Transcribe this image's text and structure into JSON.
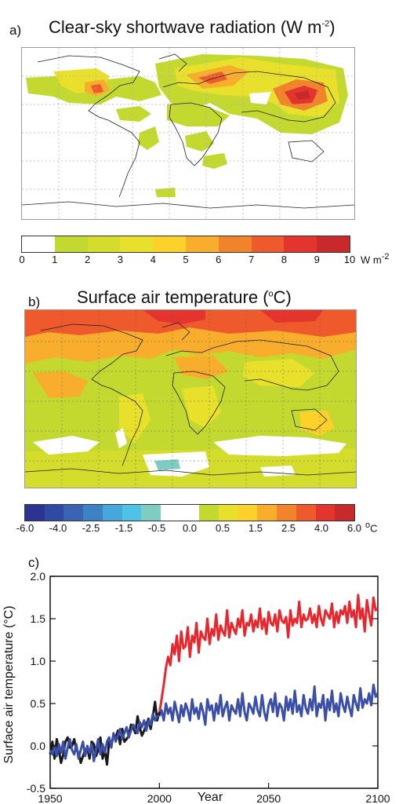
{
  "panel_a": {
    "letter": "a)",
    "title": "Clear-sky shortwave radiation (W m",
    "title_sup": "-2",
    "title_end": ")",
    "colorbar": {
      "ticks": [
        "0",
        "1",
        "2",
        "3",
        "4",
        "5",
        "6",
        "7",
        "8",
        "9",
        "10"
      ],
      "unit": "W m",
      "unit_sup": "-2",
      "colors": [
        "#ffffff",
        "#c3d92f",
        "#d4dc2c",
        "#e9e02b",
        "#fbd12a",
        "#f8ad2c",
        "#f1842a",
        "#ee5a2b",
        "#e3352d",
        "#c82a2b"
      ]
    }
  },
  "panel_b": {
    "letter": "b)",
    "title": "Surface air temperature (",
    "title_sup": "o",
    "title_end": "C)",
    "colorbar": {
      "ticks": [
        "-6.0",
        "-4.0",
        "-2.5",
        "-1.5",
        "-0.5",
        "0.0",
        "0.5",
        "1.5",
        "2.5",
        "4.0",
        "6.0"
      ],
      "unit_sup": "o",
      "unit": "C",
      "colors": [
        "#2b3590",
        "#2f4aa3",
        "#3a63b4",
        "#3e82c6",
        "#45a7dc",
        "#4ec3e6",
        "#7ecdc3",
        "#ffffff",
        "#ffffff",
        "#c3d92f",
        "#e9e02b",
        "#fbd12a",
        "#f8ad2c",
        "#f1842a",
        "#ee5a2b",
        "#e3352d",
        "#c82a2b"
      ]
    }
  },
  "chart_data": {
    "type": "line",
    "panel_label": "c)",
    "xlabel": "Year",
    "ylabel": "Surface air temperature (°C)",
    "xlim": [
      1950,
      2100
    ],
    "ylim": [
      -0.5,
      2.0
    ],
    "xticks": [
      "1950",
      "2000",
      "2050",
      "2100"
    ],
    "yticks": [
      "-0.5",
      "0.0",
      "0.5",
      "1.0",
      "1.5",
      "2.0"
    ],
    "series": [
      {
        "color": "#e8262d",
        "x": [
          2000,
          2001,
          2002,
          2003,
          2004,
          2005,
          2006,
          2007,
          2008,
          2009,
          2010,
          2011,
          2012,
          2013,
          2014,
          2015,
          2016,
          2017,
          2018,
          2019,
          2020,
          2021,
          2022,
          2023,
          2024,
          2025,
          2026,
          2027,
          2028,
          2029,
          2030,
          2031,
          2032,
          2033,
          2034,
          2035,
          2036,
          2037,
          2038,
          2039,
          2040,
          2041,
          2042,
          2043,
          2044,
          2045,
          2046,
          2047,
          2048,
          2049,
          2050,
          2051,
          2052,
          2053,
          2054,
          2055,
          2056,
          2057,
          2058,
          2059,
          2060,
          2061,
          2062,
          2063,
          2064,
          2065,
          2066,
          2067,
          2068,
          2069,
          2070,
          2071,
          2072,
          2073,
          2074,
          2075,
          2076,
          2077,
          2078,
          2079,
          2080,
          2081,
          2082,
          2083,
          2084,
          2085,
          2086,
          2087,
          2088,
          2089,
          2090,
          2091,
          2092,
          2093,
          2094,
          2095,
          2096,
          2097,
          2098,
          2099,
          2100
        ],
        "y": [
          0.38,
          0.55,
          0.72,
          0.92,
          1.05,
          0.95,
          1.2,
          1.08,
          1.3,
          1.0,
          1.35,
          1.15,
          1.18,
          1.4,
          1.05,
          1.3,
          1.22,
          1.45,
          1.1,
          1.35,
          1.28,
          1.25,
          1.5,
          1.2,
          1.38,
          1.3,
          1.55,
          1.25,
          1.42,
          1.35,
          1.3,
          1.6,
          1.28,
          1.45,
          1.38,
          1.32,
          1.5,
          1.4,
          1.6,
          1.3,
          1.45,
          1.42,
          1.55,
          1.35,
          1.48,
          1.4,
          1.62,
          1.38,
          1.5,
          1.32,
          1.58,
          1.45,
          1.42,
          1.55,
          1.35,
          1.6,
          1.48,
          1.45,
          1.52,
          1.28,
          1.6,
          1.42,
          1.5,
          1.45,
          1.7,
          1.4,
          1.55,
          1.48,
          1.5,
          1.62,
          1.45,
          1.55,
          1.4,
          1.65,
          1.5,
          1.42,
          1.6,
          1.55,
          1.5,
          1.68,
          1.4,
          1.58,
          1.45,
          1.6,
          1.55,
          1.65,
          1.45,
          1.7,
          1.52,
          1.6,
          1.4,
          1.78,
          1.5,
          1.62,
          1.35,
          1.72,
          1.55,
          1.42,
          1.75,
          1.6,
          1.62
        ]
      },
      {
        "color": "#3a4fa5",
        "x": [
          2000,
          2001,
          2002,
          2003,
          2004,
          2005,
          2006,
          2007,
          2008,
          2009,
          2010,
          2011,
          2012,
          2013,
          2014,
          2015,
          2016,
          2017,
          2018,
          2019,
          2020,
          2021,
          2022,
          2023,
          2024,
          2025,
          2026,
          2027,
          2028,
          2029,
          2030,
          2031,
          2032,
          2033,
          2034,
          2035,
          2036,
          2037,
          2038,
          2039,
          2040,
          2041,
          2042,
          2043,
          2044,
          2045,
          2046,
          2047,
          2048,
          2049,
          2050,
          2051,
          2052,
          2053,
          2054,
          2055,
          2056,
          2057,
          2058,
          2059,
          2060,
          2061,
          2062,
          2063,
          2064,
          2065,
          2066,
          2067,
          2068,
          2069,
          2070,
          2071,
          2072,
          2073,
          2074,
          2075,
          2076,
          2077,
          2078,
          2079,
          2080,
          2081,
          2082,
          2083,
          2084,
          2085,
          2086,
          2087,
          2088,
          2089,
          2090,
          2091,
          2092,
          2093,
          2094,
          2095,
          2096,
          2097,
          2098,
          2099,
          2100
        ],
        "y": [
          0.35,
          0.42,
          0.3,
          0.5,
          0.38,
          0.45,
          0.3,
          0.52,
          0.4,
          0.28,
          0.48,
          0.35,
          0.5,
          0.42,
          0.3,
          0.55,
          0.38,
          0.45,
          0.32,
          0.5,
          0.4,
          0.25,
          0.55,
          0.42,
          0.48,
          0.3,
          0.5,
          0.38,
          0.6,
          0.35,
          0.45,
          0.52,
          0.3,
          0.48,
          0.42,
          0.38,
          0.55,
          0.35,
          0.62,
          0.4,
          0.3,
          0.5,
          0.45,
          0.38,
          0.58,
          0.42,
          0.35,
          0.6,
          0.4,
          0.3,
          0.48,
          0.55,
          0.4,
          0.62,
          0.35,
          0.5,
          0.45,
          0.3,
          0.58,
          0.42,
          0.55,
          0.38,
          0.65,
          0.4,
          0.48,
          0.35,
          0.6,
          0.45,
          0.38,
          0.55,
          0.42,
          0.7,
          0.35,
          0.5,
          0.45,
          0.6,
          0.3,
          0.55,
          0.42,
          0.65,
          0.4,
          0.5,
          0.35,
          0.62,
          0.48,
          0.4,
          0.58,
          0.45,
          0.35,
          0.6,
          0.5,
          0.42,
          0.68,
          0.45,
          0.55,
          0.5,
          0.62,
          0.48,
          0.72,
          0.58,
          0.62
        ]
      },
      {
        "color": "#1a1a1a",
        "x": [
          1950,
          1951,
          1952,
          1953,
          1954,
          1955,
          1956,
          1957,
          1958,
          1959,
          1960,
          1961,
          1962,
          1963,
          1964,
          1965,
          1966,
          1967,
          1968,
          1969,
          1970,
          1971,
          1972,
          1973,
          1974,
          1975,
          1976,
          1977,
          1978,
          1979,
          1980,
          1981,
          1982,
          1983,
          1984,
          1985,
          1986,
          1987,
          1988,
          1989,
          1990,
          1991,
          1992,
          1993,
          1994,
          1995,
          1996,
          1997,
          1998,
          1999,
          2000
        ],
        "y": [
          -0.1,
          0.05,
          -0.15,
          0.08,
          -0.05,
          -0.2,
          -0.1,
          0.05,
          0.1,
          -0.02,
          0.0,
          0.08,
          -0.05,
          -0.08,
          -0.2,
          -0.12,
          -0.05,
          -0.02,
          -0.15,
          0.05,
          0.02,
          -0.12,
          -0.05,
          0.1,
          -0.15,
          -0.05,
          -0.22,
          0.05,
          0.02,
          0.12,
          0.1,
          0.18,
          0.02,
          0.2,
          0.05,
          0.08,
          0.12,
          0.25,
          0.22,
          0.15,
          0.35,
          0.22,
          0.12,
          0.18,
          0.25,
          0.32,
          0.2,
          0.35,
          0.52,
          0.3,
          0.4
        ]
      },
      {
        "color": "#3a4fa5",
        "x": [
          1950,
          1951,
          1952,
          1953,
          1954,
          1955,
          1956,
          1957,
          1958,
          1959,
          1960,
          1961,
          1962,
          1963,
          1964,
          1965,
          1966,
          1967,
          1968,
          1969,
          1970,
          1971,
          1972,
          1973,
          1974,
          1975,
          1976,
          1977,
          1978,
          1979,
          1980,
          1981,
          1982,
          1983,
          1984,
          1985,
          1986,
          1987,
          1988,
          1989,
          1990,
          1991,
          1992,
          1993,
          1994,
          1995,
          1996,
          1997,
          1998,
          1999,
          2000
        ],
        "y": [
          -0.05,
          -0.1,
          0.0,
          -0.12,
          0.02,
          -0.08,
          0.05,
          -0.15,
          -0.02,
          0.08,
          -0.05,
          -0.1,
          0.02,
          -0.15,
          -0.05,
          0.05,
          -0.12,
          0.0,
          -0.08,
          0.02,
          -0.18,
          -0.05,
          0.08,
          -0.1,
          0.02,
          -0.08,
          0.05,
          0.1,
          -0.02,
          0.15,
          0.05,
          0.12,
          0.2,
          0.08,
          0.15,
          0.22,
          0.1,
          0.18,
          0.25,
          0.2,
          0.15,
          0.28,
          0.22,
          0.3,
          0.18,
          0.3,
          0.25,
          0.38,
          0.3,
          0.35,
          0.35
        ]
      }
    ]
  }
}
